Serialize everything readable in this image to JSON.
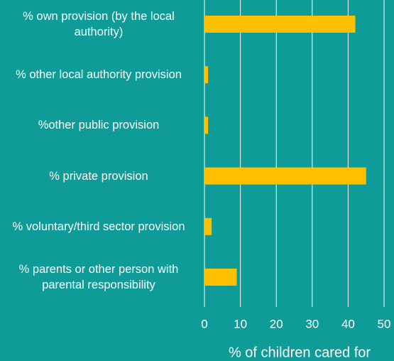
{
  "chart_data": {
    "type": "bar",
    "orientation": "horizontal",
    "categories": [
      "% own provision (by the local authority)",
      "% other local authority provision",
      "%other public provision",
      "% private provision",
      "% voluntary/third sector provision",
      "% parents or other person with parental responsibility"
    ],
    "values": [
      42,
      1,
      1,
      45,
      2,
      9
    ],
    "color": "#ffc000",
    "xlabel": "% of children cared for",
    "xlim": [
      0,
      50
    ],
    "xticks": [
      0,
      10,
      20,
      30,
      40,
      50
    ],
    "grid": true
  }
}
